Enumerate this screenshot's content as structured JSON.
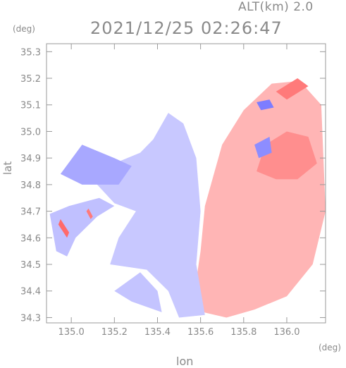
{
  "header": {
    "altitude": "ALT(km) 2.0",
    "datetime": "2021/12/25 02:26:47"
  },
  "colors": {
    "axis": "#9a9a9a",
    "approaching": "#7d7dff",
    "receding": "#ff7d7d",
    "background": "#ffffff"
  },
  "chart_data": {
    "type": "heatmap",
    "title": "",
    "xlabel": "lon",
    "ylabel": "lat",
    "x_unit": "(deg)",
    "y_unit": "(deg)",
    "xlim": [
      134.885,
      136.18
    ],
    "ylim": [
      34.28,
      35.33
    ],
    "x_ticks": [
      "135.0",
      "135.2",
      "135.4",
      "135.6",
      "135.8",
      "136.0"
    ],
    "y_ticks": [
      "34.3",
      "34.4",
      "34.5",
      "34.6",
      "34.7",
      "34.8",
      "34.9",
      "35.0",
      "35.1",
      "35.2",
      "35.3"
    ],
    "grid": false,
    "regions": [
      {
        "name": "red-east",
        "color": "#ffb5b5",
        "points": [
          [
            135.56,
            34.33
          ],
          [
            135.6,
            34.55
          ],
          [
            135.62,
            34.72
          ],
          [
            135.7,
            34.95
          ],
          [
            135.8,
            35.08
          ],
          [
            135.93,
            35.18
          ],
          [
            136.06,
            35.19
          ],
          [
            136.16,
            35.1
          ],
          [
            136.18,
            34.7
          ],
          [
            136.12,
            34.5
          ],
          [
            136.0,
            34.38
          ],
          [
            135.85,
            34.33
          ],
          [
            135.72,
            34.3
          ]
        ]
      },
      {
        "name": "blue-central",
        "color": "#c8c8ff",
        "points": [
          [
            135.18,
            34.5
          ],
          [
            135.35,
            34.48
          ],
          [
            135.45,
            34.4
          ],
          [
            135.5,
            34.3
          ],
          [
            135.62,
            34.31
          ],
          [
            135.58,
            34.5
          ],
          [
            135.6,
            34.7
          ],
          [
            135.58,
            34.9
          ],
          [
            135.52,
            35.03
          ],
          [
            135.45,
            35.07
          ],
          [
            135.38,
            34.97
          ],
          [
            135.32,
            34.92
          ],
          [
            135.2,
            34.88
          ],
          [
            135.12,
            34.8
          ],
          [
            135.2,
            34.73
          ],
          [
            135.3,
            34.7
          ],
          [
            135.22,
            34.6
          ]
        ]
      },
      {
        "name": "blue-west",
        "color": "#a8a8ff",
        "points": [
          [
            134.95,
            34.84
          ],
          [
            135.05,
            34.95
          ],
          [
            135.2,
            34.9
          ],
          [
            135.28,
            34.87
          ],
          [
            135.22,
            34.8
          ],
          [
            135.05,
            34.8
          ]
        ]
      },
      {
        "name": "blue-southwest",
        "color": "#c0c0ff",
        "points": [
          [
            134.9,
            34.69
          ],
          [
            134.99,
            34.72
          ],
          [
            135.13,
            34.75
          ],
          [
            135.2,
            34.72
          ],
          [
            135.12,
            34.68
          ],
          [
            135.02,
            34.6
          ],
          [
            134.98,
            34.53
          ],
          [
            134.93,
            34.55
          ]
        ]
      },
      {
        "name": "blue-south",
        "color": "#c4c4ff",
        "points": [
          [
            135.2,
            34.4
          ],
          [
            135.32,
            34.47
          ],
          [
            135.4,
            34.4
          ],
          [
            135.42,
            34.32
          ],
          [
            135.28,
            34.36
          ]
        ]
      },
      {
        "name": "red-core",
        "color": "#ff8e8e",
        "points": [
          [
            135.86,
            34.85
          ],
          [
            135.9,
            34.95
          ],
          [
            136.0,
            35.0
          ],
          [
            136.1,
            34.98
          ],
          [
            136.14,
            34.88
          ],
          [
            136.05,
            34.82
          ],
          [
            135.95,
            34.82
          ]
        ]
      },
      {
        "name": "red-band-north",
        "color": "#ff7a7a",
        "points": [
          [
            135.95,
            35.15
          ],
          [
            136.05,
            35.2
          ],
          [
            136.1,
            35.17
          ],
          [
            136.0,
            35.12
          ]
        ]
      },
      {
        "name": "blue-band-north",
        "color": "#7d7dff",
        "points": [
          [
            135.86,
            35.11
          ],
          [
            135.92,
            35.12
          ],
          [
            135.94,
            35.09
          ],
          [
            135.88,
            35.08
          ]
        ]
      },
      {
        "name": "blue-band-ne",
        "color": "#8d8dff",
        "points": [
          [
            135.85,
            34.95
          ],
          [
            135.92,
            34.98
          ],
          [
            135.93,
            34.92
          ],
          [
            135.87,
            34.9
          ]
        ]
      },
      {
        "name": "red-streak-sw",
        "color": "#ff6a6a",
        "points": [
          [
            134.95,
            34.67
          ],
          [
            134.99,
            34.62
          ],
          [
            134.98,
            34.6
          ],
          [
            134.94,
            34.65
          ]
        ]
      },
      {
        "name": "red-streak-w",
        "color": "#ff7a7a",
        "points": [
          [
            135.08,
            34.71
          ],
          [
            135.1,
            34.68
          ],
          [
            135.09,
            34.67
          ],
          [
            135.07,
            34.7
          ]
        ]
      }
    ],
    "legend": "none"
  }
}
